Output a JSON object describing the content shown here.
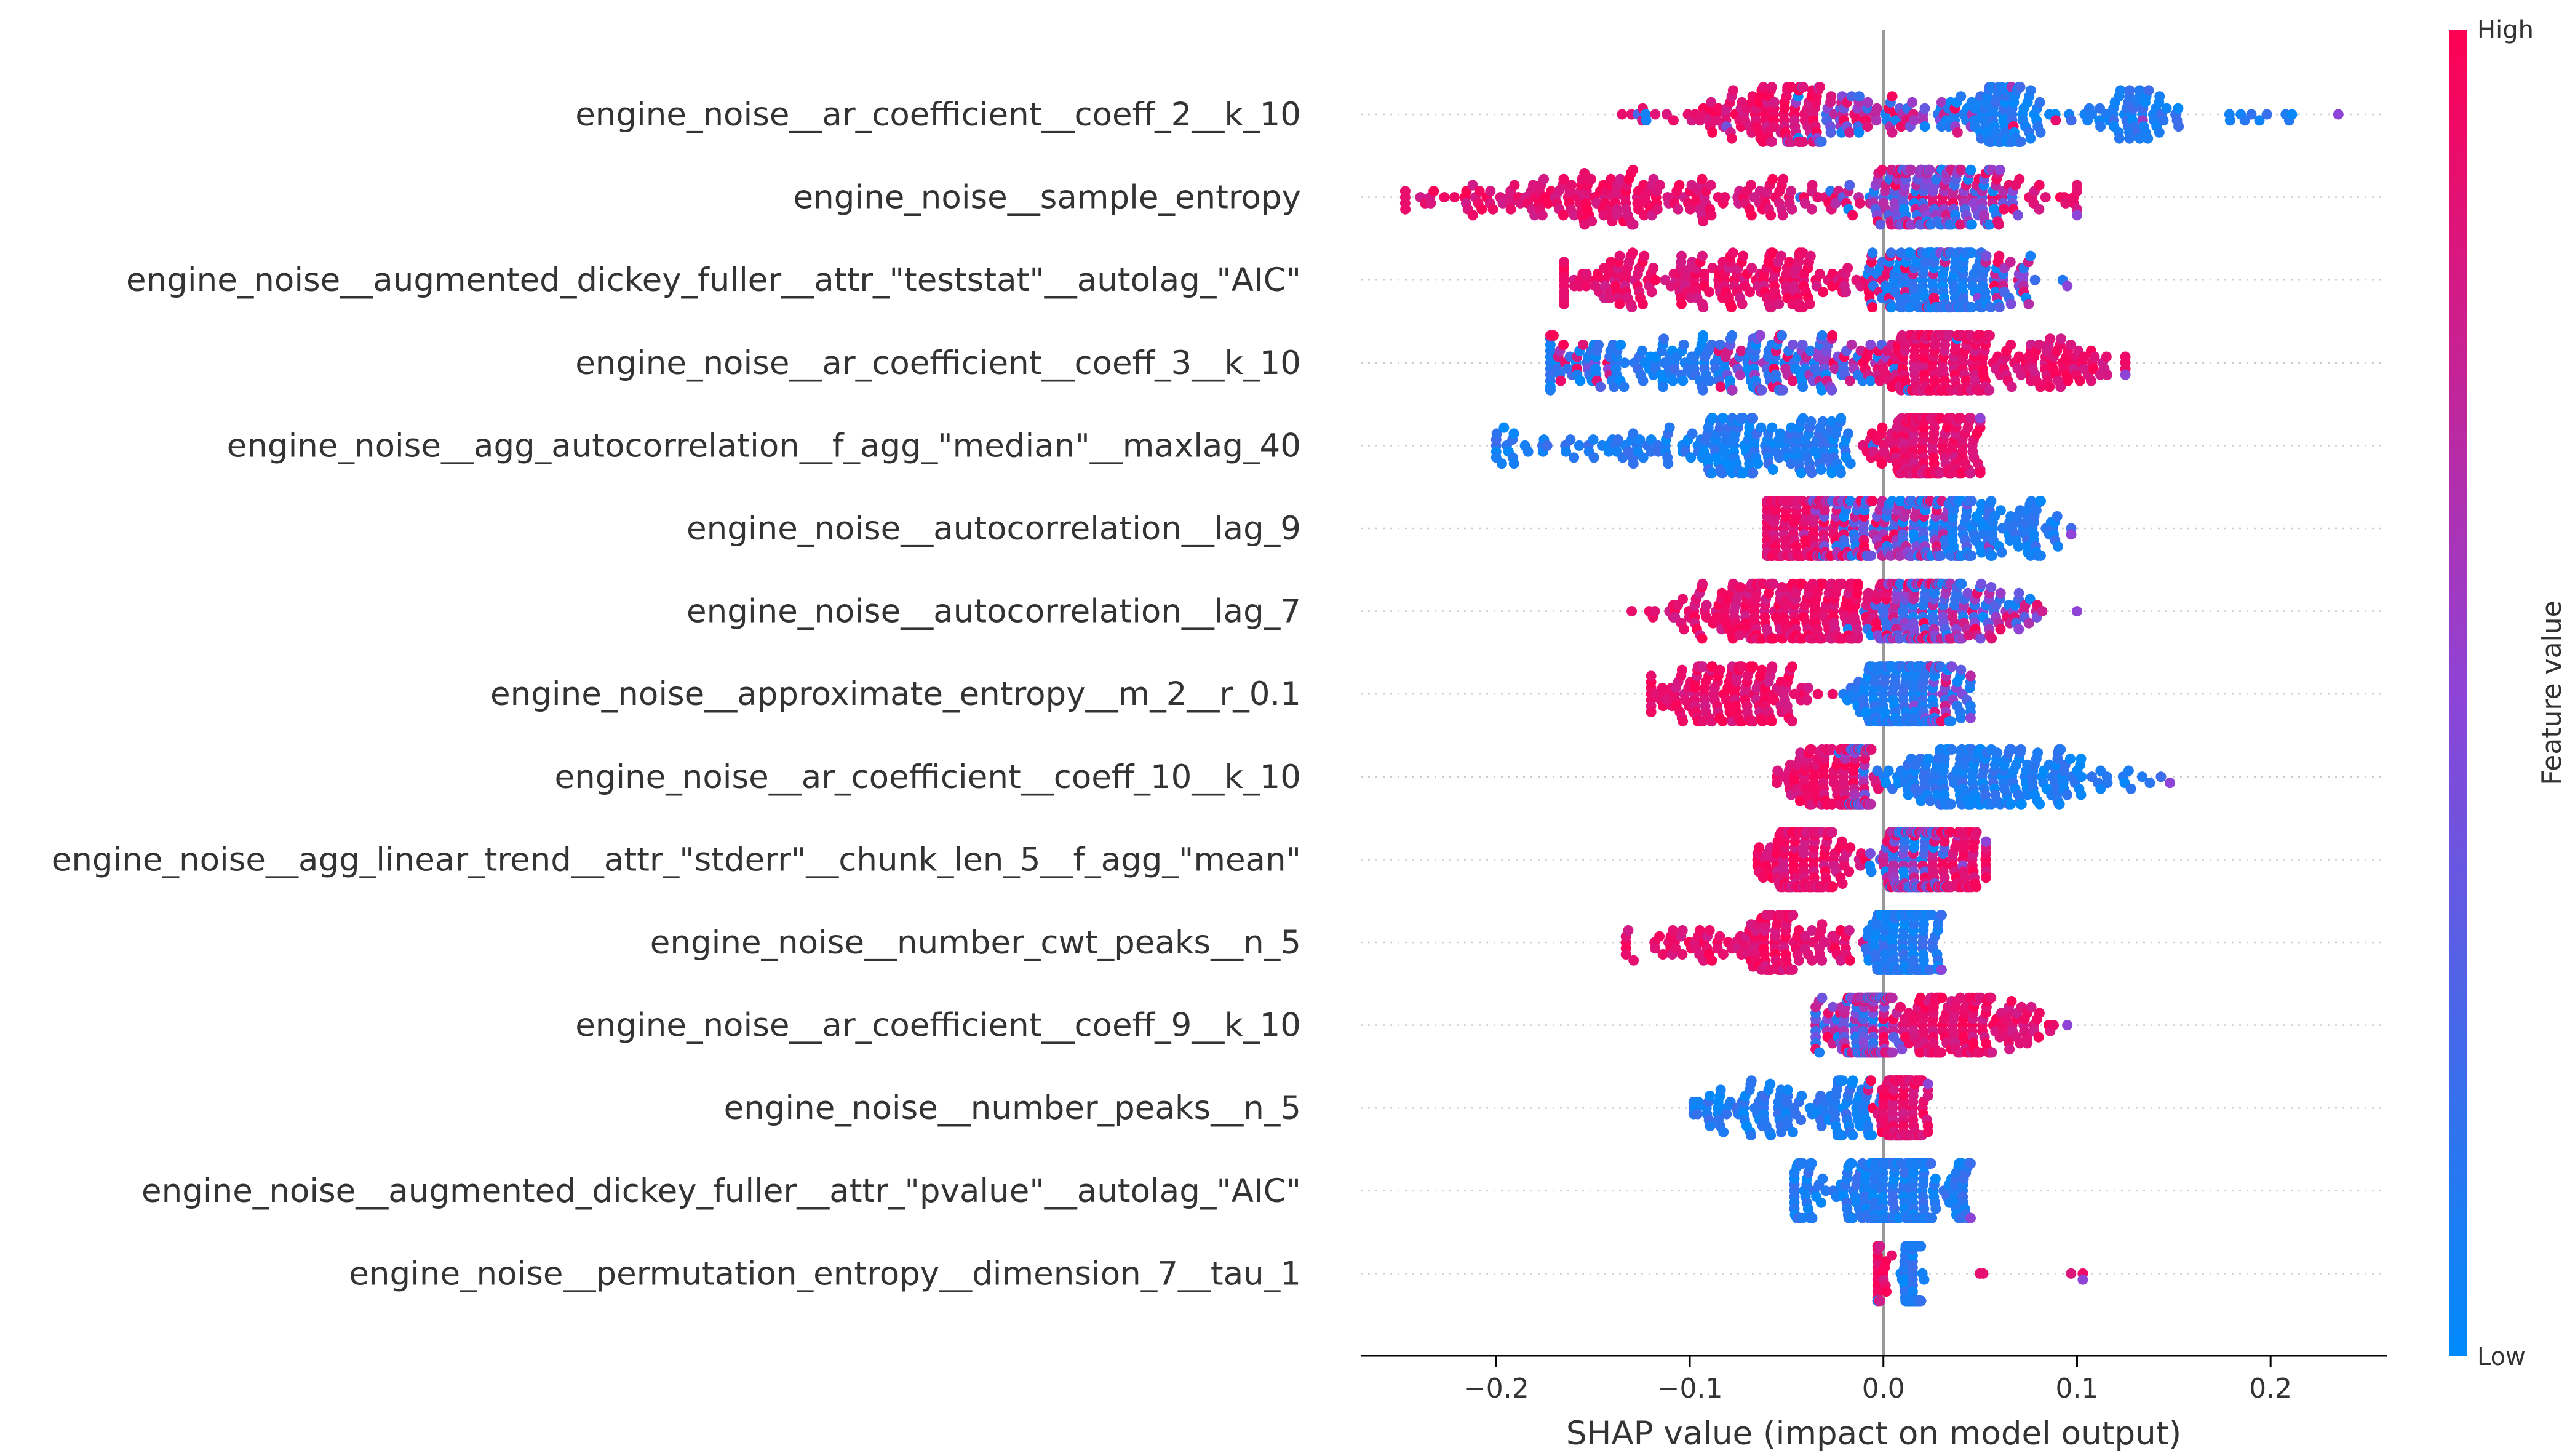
{
  "chart_data": {
    "type": "scatter",
    "subtype": "shap-beeswarm",
    "xlabel": "SHAP value (impact on model output)",
    "xlim": [
      -0.27,
      0.26
    ],
    "xticks": [
      -0.2,
      -0.1,
      0.0,
      0.1,
      0.2
    ],
    "xtick_labels": [
      "−0.2",
      "−0.1",
      "0.0",
      "0.1",
      "0.2"
    ],
    "colorbar": {
      "label": "Feature value",
      "high_label": "High",
      "low_label": "Low"
    },
    "colors": {
      "high": "#ff0052",
      "low": "#008bfb",
      "zero_line": "#999999",
      "grid": "#cccccc",
      "text": "#333333"
    },
    "features": [
      {
        "name": "engine_noise__ar_coefficient__coeff_2__k_10",
        "min": -0.135,
        "max": 0.235,
        "clusters": [
          [
            -0.053,
            0.016,
            100,
            "high"
          ],
          [
            -0.02,
            0.015,
            50,
            "mixed"
          ],
          [
            0.065,
            0.012,
            90,
            "low"
          ],
          [
            0.13,
            0.014,
            60,
            "low"
          ],
          [
            -0.09,
            0.008,
            20,
            "high"
          ],
          [
            0.025,
            0.035,
            40,
            "mixed"
          ],
          [
            0.19,
            0.01,
            10,
            "low"
          ],
          [
            -0.12,
            0.01,
            8,
            "mixed"
          ]
        ]
      },
      {
        "name": "engine_noise__sample_entropy",
        "min": -0.247,
        "max": 0.1,
        "clusters": [
          [
            -0.135,
            0.04,
            160,
            "high"
          ],
          [
            0.025,
            0.022,
            200,
            "mixed"
          ],
          [
            -0.05,
            0.02,
            25,
            "high"
          ],
          [
            0.075,
            0.02,
            25,
            "high"
          ],
          [
            -0.22,
            0.02,
            20,
            "high"
          ]
        ]
      },
      {
        "name": "engine_noise__augmented_dickey_fuller__attr_\"teststat\"__autolag_\"AIC\"",
        "min": -0.165,
        "max": 0.095,
        "clusters": [
          [
            -0.07,
            0.045,
            200,
            "high"
          ],
          [
            0.03,
            0.016,
            180,
            "low"
          ],
          [
            0.06,
            0.02,
            50,
            "mixed"
          ],
          [
            -0.14,
            0.015,
            30,
            "high"
          ]
        ]
      },
      {
        "name": "engine_noise__ar_coefficient__coeff_3__k_10",
        "min": -0.172,
        "max": 0.125,
        "clusters": [
          [
            -0.1,
            0.04,
            140,
            "low"
          ],
          [
            -0.035,
            0.025,
            100,
            "mixed"
          ],
          [
            0.03,
            0.016,
            220,
            "high"
          ],
          [
            0.085,
            0.022,
            80,
            "high"
          ],
          [
            -0.155,
            0.012,
            20,
            "mixed"
          ]
        ]
      },
      {
        "name": "engine_noise__agg_autocorrelation__f_agg_\"median\"__maxlag_40",
        "min": -0.2,
        "max": 0.05,
        "clusters": [
          [
            -0.14,
            0.03,
            50,
            "low"
          ],
          [
            -0.07,
            0.025,
            120,
            "low"
          ],
          [
            -0.03,
            0.01,
            40,
            "low"
          ],
          [
            0.025,
            0.014,
            200,
            "high"
          ],
          [
            -0.19,
            0.008,
            10,
            "low"
          ]
        ]
      },
      {
        "name": "engine_noise__autocorrelation__lag_9",
        "min": -0.06,
        "max": 0.097,
        "clusters": [
          [
            -0.045,
            0.012,
            160,
            "high"
          ],
          [
            -0.015,
            0.012,
            100,
            "mixed"
          ],
          [
            0.02,
            0.012,
            90,
            "mixed"
          ],
          [
            0.04,
            0.01,
            90,
            "low"
          ],
          [
            0.075,
            0.012,
            50,
            "low"
          ]
        ]
      },
      {
        "name": "engine_noise__autocorrelation__lag_7",
        "min": -0.13,
        "max": 0.1,
        "clusters": [
          [
            -0.06,
            0.02,
            150,
            "high"
          ],
          [
            -0.02,
            0.012,
            80,
            "high"
          ],
          [
            0.025,
            0.014,
            200,
            "mixed"
          ],
          [
            0.06,
            0.012,
            40,
            "mixed"
          ],
          [
            -0.1,
            0.01,
            20,
            "high"
          ]
        ]
      },
      {
        "name": "engine_noise__approximate_entropy__m_2__r_0.1",
        "min": -0.12,
        "max": 0.045,
        "clusters": [
          [
            -0.075,
            0.022,
            160,
            "high"
          ],
          [
            0.008,
            0.012,
            200,
            "low"
          ],
          [
            0.03,
            0.008,
            40,
            "mixed"
          ]
        ]
      },
      {
        "name": "engine_noise__ar_coefficient__coeff_10__k_10",
        "min": -0.055,
        "max": 0.148,
        "clusters": [
          [
            -0.03,
            0.01,
            100,
            "high"
          ],
          [
            -0.012,
            0.004,
            60,
            "mixed"
          ],
          [
            0.04,
            0.018,
            150,
            "low"
          ],
          [
            0.085,
            0.016,
            60,
            "low"
          ],
          [
            0.13,
            0.01,
            10,
            "low"
          ]
        ]
      },
      {
        "name": "engine_noise__agg_linear_trend__attr_\"stderr\"__chunk_len_5__f_agg_\"mean\"",
        "min": -0.065,
        "max": 0.053,
        "clusters": [
          [
            -0.04,
            0.012,
            180,
            "high"
          ],
          [
            0.015,
            0.01,
            180,
            "mixed"
          ],
          [
            0.04,
            0.008,
            80,
            "high"
          ]
        ]
      },
      {
        "name": "engine_noise__number_cwt_peaks__n_5",
        "min": -0.133,
        "max": 0.03,
        "clusters": [
          [
            -0.055,
            0.01,
            100,
            "high"
          ],
          [
            -0.1,
            0.018,
            40,
            "high"
          ],
          [
            -0.025,
            0.01,
            20,
            "high"
          ],
          [
            0.012,
            0.01,
            220,
            "low"
          ]
        ]
      },
      {
        "name": "engine_noise__ar_coefficient__coeff_9__k_10",
        "min": -0.035,
        "max": 0.095,
        "clusters": [
          [
            -0.005,
            0.006,
            200,
            "mixed"
          ],
          [
            -0.025,
            0.008,
            40,
            "mixed"
          ],
          [
            0.03,
            0.012,
            100,
            "high"
          ],
          [
            0.065,
            0.015,
            60,
            "high"
          ]
        ]
      },
      {
        "name": "engine_noise__number_peaks__n_5",
        "min": -0.098,
        "max": 0.023,
        "clusters": [
          [
            -0.065,
            0.018,
            80,
            "low"
          ],
          [
            -0.02,
            0.01,
            60,
            "low"
          ],
          [
            0.01,
            0.006,
            200,
            "high"
          ]
        ]
      },
      {
        "name": "engine_noise__augmented_dickey_fuller__attr_\"pvalue\"__autolag_\"AIC\"",
        "min": -0.046,
        "max": 0.045,
        "clusters": [
          [
            -0.04,
            0.005,
            40,
            "low"
          ],
          [
            0.0,
            0.004,
            150,
            "low"
          ],
          [
            0.018,
            0.004,
            150,
            "low"
          ],
          [
            0.04,
            0.004,
            40,
            "low"
          ],
          [
            -0.015,
            0.006,
            40,
            "low"
          ]
        ]
      },
      {
        "name": "engine_noise__permutation_entropy__dimension_7__tau_1",
        "min": -0.003,
        "max": 0.103,
        "clusters": [
          [
            0.015,
            0.002,
            250,
            "low"
          ],
          [
            -0.002,
            0.004,
            30,
            "high"
          ],
          [
            0.05,
            0.003,
            2,
            "high"
          ],
          [
            0.1,
            0.003,
            2,
            "high"
          ]
        ]
      }
    ]
  }
}
